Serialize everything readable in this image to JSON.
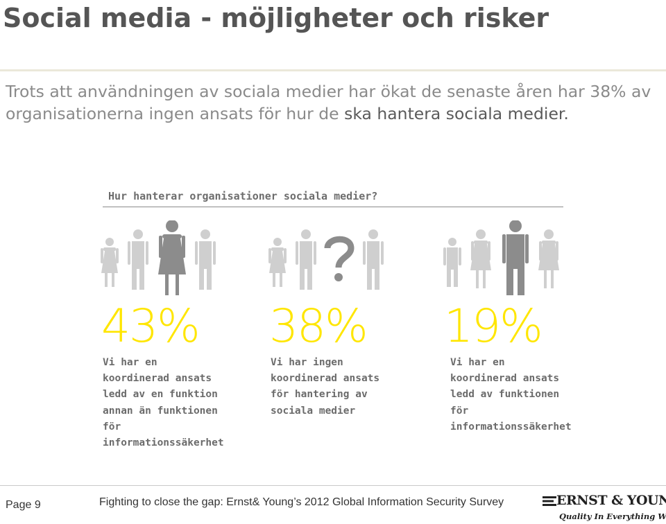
{
  "slide": {
    "title": "Social media - möjligheter och risker",
    "lead_plain": "Trots att användningen av sociala medier har ökat de senaste åren har 38% av organisationerna ingen ansats för hur de ",
    "lead_highlight": "ska hantera sociala medier."
  },
  "infographic": {
    "title": "Hur hanterar organisationer sociala medier?",
    "groups": [
      {
        "percent": "43%",
        "description": "Vi har en koordinerad ansats ledd av en funktion annan än funktionen för informationssäkerhet",
        "highlight": "large-woman"
      },
      {
        "percent": "38%",
        "description": "Vi har ingen koordinerad ansats för hantering av sociala medier",
        "highlight": "question-mark"
      },
      {
        "percent": "19%",
        "description": "Vi har en koordinerad ansats ledd av funktionen för informationssäkerhet",
        "highlight": "large-man"
      }
    ],
    "colors": {
      "percent": "#ffe600",
      "figure_light": "#cfcfcf",
      "figure_dark": "#8c8c8c"
    }
  },
  "footer": {
    "page": "Page 9",
    "source": "Fighting to close the gap: Ernst& Young’s 2012 Global Information Security Survey",
    "logo_name": "ERNST & YOUNG",
    "logo_tagline": "Quality In Everything We Do"
  }
}
